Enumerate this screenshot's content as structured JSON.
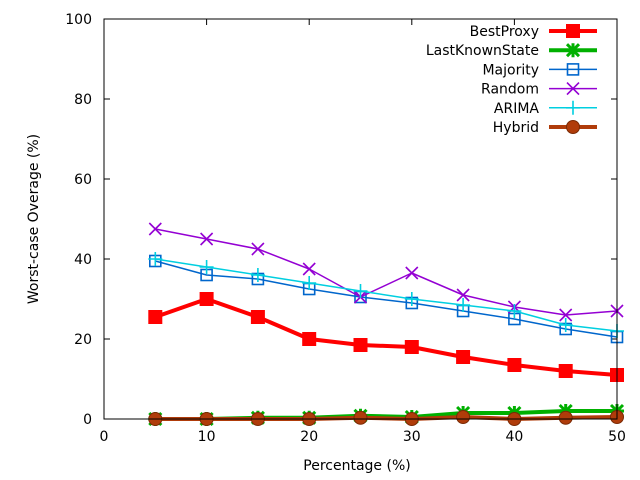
{
  "chart_data": {
    "type": "line",
    "title": "",
    "xlabel": "Percentage (%)",
    "ylabel": "Worst-case Overage (%)",
    "xlim": [
      0,
      50
    ],
    "ylim": [
      0,
      100
    ],
    "xticks": [
      0,
      10,
      20,
      30,
      40,
      50
    ],
    "yticks": [
      0,
      20,
      40,
      60,
      80,
      100
    ],
    "x": [
      5,
      10,
      15,
      20,
      25,
      30,
      35,
      40,
      45,
      50
    ],
    "legend_position": "top-right",
    "series": [
      {
        "name": "BestProxy",
        "color": "#ff0000",
        "marker": "filled-square",
        "line_width": "thick",
        "values": [
          25.5,
          30.0,
          25.5,
          20.0,
          18.5,
          18.0,
          15.5,
          13.5,
          12.0,
          11.0
        ]
      },
      {
        "name": "LastKnownState",
        "color": "#00b000",
        "marker": "star",
        "line_width": "thick",
        "values": [
          0.0,
          0.0,
          0.3,
          0.3,
          0.8,
          0.5,
          1.5,
          1.5,
          2.0,
          2.0
        ]
      },
      {
        "name": "Majority",
        "color": "#0066cc",
        "marker": "open-square",
        "line_width": "thin",
        "values": [
          39.5,
          36.0,
          35.0,
          32.5,
          30.5,
          29.0,
          27.0,
          25.0,
          22.5,
          20.5
        ]
      },
      {
        "name": "Random",
        "color": "#9400d3",
        "marker": "x",
        "line_width": "thin",
        "values": [
          47.5,
          45.0,
          42.5,
          37.5,
          30.5,
          36.5,
          31.0,
          28.0,
          26.0,
          27.0
        ]
      },
      {
        "name": "ARIMA",
        "color": "#00cfe0",
        "marker": "plus",
        "line_width": "thin",
        "values": [
          40.0,
          38.0,
          36.0,
          34.0,
          32.0,
          30.0,
          28.5,
          27.0,
          23.5,
          22.0
        ]
      },
      {
        "name": "Hybrid",
        "color": "#b03c0a",
        "marker": "filled-circle",
        "line_width": "thick",
        "values": [
          0.0,
          0.0,
          0.0,
          0.0,
          0.3,
          0.0,
          0.5,
          0.0,
          0.3,
          0.5
        ]
      }
    ]
  }
}
